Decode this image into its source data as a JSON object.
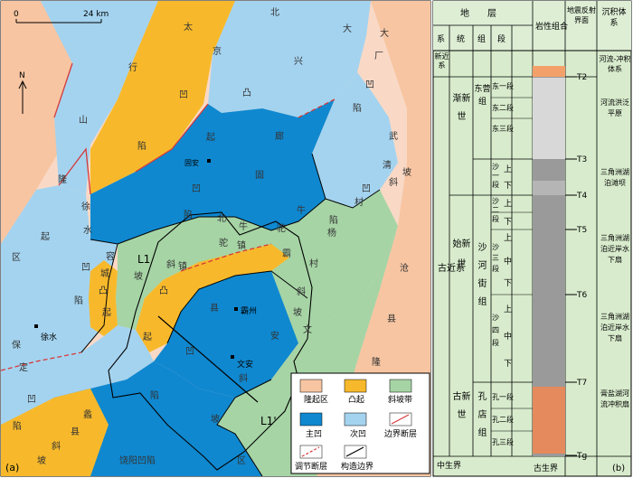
{
  "panel_a": {
    "panel_label": "(a)",
    "scale": {
      "zero": "0",
      "length": "24 km"
    },
    "north": "N",
    "region_labels": {
      "taihang_chars": [
        "太",
        "行",
        "山",
        "隆",
        "起"
      ],
      "jingdepre_chars": [
        "京",
        "凹",
        "陷"
      ],
      "daxing_chars": [
        "大",
        "兴",
        "凸",
        "起"
      ],
      "dachang_chars": [
        "大",
        "厂",
        "凹",
        "陷"
      ],
      "north": "北",
      "langgu_chars": [
        "廊",
        "固"
      ],
      "langgu_lower": [
        "凹",
        "陷"
      ],
      "wuqing_chars": [
        "武",
        "清",
        "凹",
        "陷"
      ],
      "cangxian_chars": [
        "沧",
        "县",
        "隆",
        "起"
      ],
      "xushui_chars": [
        "徐",
        "水",
        "凹",
        "陷"
      ],
      "qu": "区",
      "rongcheng_chars": [
        "容",
        "城",
        "凸",
        "起"
      ],
      "niutuo_chars": [
        "牛",
        "驼",
        "镇",
        "凸",
        "起"
      ],
      "niutuo_slope": [
        "牛",
        "驼",
        "镇",
        "斜",
        "坡"
      ],
      "beicun": [
        "北",
        "村",
        "斜",
        "坡"
      ],
      "yangcun": [
        "杨",
        "村",
        "斜",
        "坡"
      ],
      "baxian_chars": [
        "霸",
        "县",
        "凹",
        "陷"
      ],
      "wenan_chars": [
        "文",
        "安",
        "斜",
        "坡"
      ],
      "baoding_chars": [
        "保",
        "定",
        "凹",
        "陷"
      ],
      "lixian_chars": [
        "蠡",
        "县",
        "斜",
        "坡"
      ],
      "raoyang": "饶阳凹陷",
      "qu2": "区"
    },
    "cities": [
      "固安",
      "霸州",
      "徐水",
      "文安"
    ],
    "section_labels": [
      "L1",
      "L1'"
    ],
    "legend": {
      "items": [
        {
          "label": "隆起区",
          "color": "#f7c5a2"
        },
        {
          "label": "凸起",
          "color": "#f7b92b"
        },
        {
          "label": "斜坡带",
          "color": "#a6d4a5"
        },
        {
          "label": "主凹",
          "color": "#0f88d0"
        },
        {
          "label": "次凹",
          "color": "#a4d3ef"
        },
        {
          "label": "边界断层",
          "color": "#d63a3a"
        },
        {
          "label": "调节断层",
          "color": "#d63a3a"
        },
        {
          "label": "构造边界",
          "color": "#000000"
        }
      ]
    }
  },
  "panel_b": {
    "panel_label": "(b)",
    "headers": {
      "strata": "地　　层",
      "system": "系",
      "series": "统",
      "formation": "组",
      "member": "段",
      "lithology": "岩性组合",
      "seismic": "地震反射界面",
      "facies": "沉积体系"
    },
    "system_neo": "新近系",
    "system_paleo": "古近系",
    "series_jian": "渐新世",
    "series_shi": "始新世",
    "series_gu": "古新世",
    "formation_dy": "东营组",
    "formation_sh": "沙河街组",
    "formation_kd": "孔店组",
    "members_dy": [
      "东一段",
      "东二段",
      "东三段"
    ],
    "members_sh": [
      "沙一段",
      "沙二段",
      "沙三段",
      "沙四段"
    ],
    "sub_sh1": [
      "上",
      "下"
    ],
    "sub_sh2": [
      "上",
      "下"
    ],
    "sub_sh3": [
      "上",
      "中",
      "下"
    ],
    "sub_sh4": [
      "上",
      "中",
      "下"
    ],
    "members_kd": [
      "孔一段",
      "孔二段",
      "孔三段"
    ],
    "bottom_left": "中生界",
    "bottom_right": "古生界",
    "seismic_marks": [
      "T2",
      "T3",
      "T4",
      "T5",
      "T6",
      "T7",
      "Tg"
    ],
    "facies": [
      "河流-冲积体系",
      "河流洪泛平原",
      "三角洲湖泊滩坝",
      "三角洲湖泊近岸水下扇",
      "三角洲湖泊近岸水下扇",
      "膏盐湖河流冲积扇"
    ]
  }
}
